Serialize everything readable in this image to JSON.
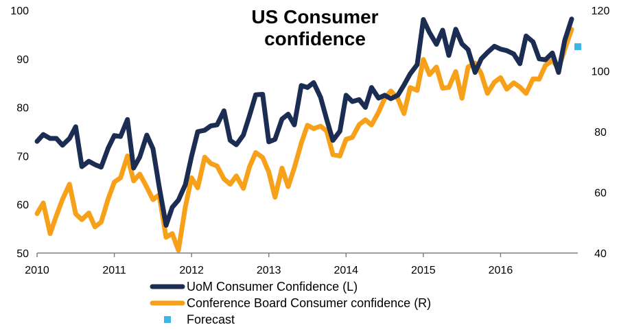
{
  "chart_data": {
    "type": "line",
    "title_lines": [
      "US Consumer",
      "confidence"
    ],
    "x_tick_labels": [
      "2010",
      "2011",
      "2012",
      "2013",
      "2014",
      "2015",
      "2016"
    ],
    "xlim": [
      2010,
      2017
    ],
    "y_left": {
      "ylim": [
        50,
        100
      ],
      "ticks": [
        50,
        60,
        70,
        80,
        90,
        100
      ]
    },
    "y_right": {
      "ylim": [
        40,
        120
      ],
      "ticks": [
        40,
        60,
        80,
        100,
        120
      ]
    },
    "grid": false,
    "legend_position": "bottom",
    "series": [
      {
        "name": "UoM Consumer Confidence (L)",
        "axis": "left",
        "color": "#1b2d52",
        "points": [
          [
            2010.0,
            73.0
          ],
          [
            2010.08,
            74.4
          ],
          [
            2010.17,
            73.6
          ],
          [
            2010.25,
            73.6
          ],
          [
            2010.33,
            72.2
          ],
          [
            2010.42,
            73.6
          ],
          [
            2010.5,
            76.0
          ],
          [
            2010.58,
            67.8
          ],
          [
            2010.67,
            68.9
          ],
          [
            2010.75,
            68.2
          ],
          [
            2010.83,
            67.7
          ],
          [
            2010.92,
            71.6
          ],
          [
            2011.0,
            74.2
          ],
          [
            2011.08,
            74.0
          ],
          [
            2011.17,
            77.5
          ],
          [
            2011.25,
            67.5
          ],
          [
            2011.33,
            69.8
          ],
          [
            2011.42,
            74.3
          ],
          [
            2011.5,
            71.5
          ],
          [
            2011.58,
            63.7
          ],
          [
            2011.67,
            55.7
          ],
          [
            2011.75,
            59.4
          ],
          [
            2011.83,
            60.9
          ],
          [
            2011.92,
            64.1
          ],
          [
            2012.0,
            69.9
          ],
          [
            2012.08,
            75.0
          ],
          [
            2012.17,
            75.3
          ],
          [
            2012.25,
            76.2
          ],
          [
            2012.33,
            76.4
          ],
          [
            2012.42,
            79.3
          ],
          [
            2012.5,
            73.2
          ],
          [
            2012.58,
            72.3
          ],
          [
            2012.67,
            74.3
          ],
          [
            2012.75,
            78.3
          ],
          [
            2012.83,
            82.6
          ],
          [
            2012.92,
            82.7
          ],
          [
            2013.0,
            72.9
          ],
          [
            2013.08,
            73.4
          ],
          [
            2013.17,
            77.6
          ],
          [
            2013.25,
            78.6
          ],
          [
            2013.33,
            76.4
          ],
          [
            2013.42,
            84.5
          ],
          [
            2013.5,
            84.1
          ],
          [
            2013.58,
            85.1
          ],
          [
            2013.67,
            82.1
          ],
          [
            2013.75,
            77.5
          ],
          [
            2013.83,
            73.2
          ],
          [
            2013.92,
            75.1
          ],
          [
            2014.0,
            82.5
          ],
          [
            2014.08,
            81.2
          ],
          [
            2014.17,
            81.6
          ],
          [
            2014.25,
            80.0
          ],
          [
            2014.33,
            84.1
          ],
          [
            2014.42,
            81.9
          ],
          [
            2014.5,
            82.5
          ],
          [
            2014.58,
            81.8
          ],
          [
            2014.67,
            82.5
          ],
          [
            2014.75,
            84.6
          ],
          [
            2014.83,
            86.9
          ],
          [
            2014.92,
            88.8
          ],
          [
            2015.0,
            98.1
          ],
          [
            2015.08,
            95.4
          ],
          [
            2015.17,
            93.0
          ],
          [
            2015.25,
            95.9
          ],
          [
            2015.33,
            90.7
          ],
          [
            2015.42,
            96.1
          ],
          [
            2015.5,
            93.1
          ],
          [
            2015.58,
            91.9
          ],
          [
            2015.67,
            87.2
          ],
          [
            2015.75,
            90.0
          ],
          [
            2015.83,
            91.3
          ],
          [
            2015.92,
            92.6
          ],
          [
            2016.0,
            92.0
          ],
          [
            2016.08,
            91.7
          ],
          [
            2016.17,
            91.0
          ],
          [
            2016.25,
            89.0
          ],
          [
            2016.33,
            94.7
          ],
          [
            2016.42,
            93.5
          ],
          [
            2016.5,
            90.0
          ],
          [
            2016.58,
            89.8
          ],
          [
            2016.67,
            91.2
          ],
          [
            2016.75,
            87.2
          ],
          [
            2016.83,
            93.8
          ],
          [
            2016.92,
            98.2
          ]
        ]
      },
      {
        "name": "Conference Board Consumer confidence (R)",
        "axis": "right",
        "color": "#f7a11a",
        "points": [
          [
            2010.0,
            53.0
          ],
          [
            2010.08,
            56.5
          ],
          [
            2010.17,
            46.4
          ],
          [
            2010.25,
            52.3
          ],
          [
            2010.33,
            57.7
          ],
          [
            2010.42,
            62.7
          ],
          [
            2010.5,
            52.9
          ],
          [
            2010.58,
            51.0
          ],
          [
            2010.67,
            53.2
          ],
          [
            2010.75,
            48.6
          ],
          [
            2010.83,
            50.2
          ],
          [
            2010.92,
            57.8
          ],
          [
            2011.0,
            63.4
          ],
          [
            2011.08,
            64.8
          ],
          [
            2011.17,
            72.0
          ],
          [
            2011.25,
            63.8
          ],
          [
            2011.33,
            66.0
          ],
          [
            2011.42,
            61.7
          ],
          [
            2011.5,
            57.6
          ],
          [
            2011.58,
            59.2
          ],
          [
            2011.67,
            45.2
          ],
          [
            2011.75,
            46.4
          ],
          [
            2011.83,
            40.9
          ],
          [
            2011.92,
            55.2
          ],
          [
            2012.0,
            64.8
          ],
          [
            2012.08,
            61.5
          ],
          [
            2012.17,
            71.6
          ],
          [
            2012.25,
            69.5
          ],
          [
            2012.33,
            68.7
          ],
          [
            2012.42,
            64.4
          ],
          [
            2012.5,
            62.7
          ],
          [
            2012.58,
            65.4
          ],
          [
            2012.67,
            61.3
          ],
          [
            2012.75,
            68.4
          ],
          [
            2012.83,
            73.1
          ],
          [
            2012.92,
            71.5
          ],
          [
            2013.0,
            66.7
          ],
          [
            2013.08,
            58.4
          ],
          [
            2013.17,
            68.0
          ],
          [
            2013.25,
            61.9
          ],
          [
            2013.33,
            68.1
          ],
          [
            2013.42,
            76.2
          ],
          [
            2013.5,
            82.1
          ],
          [
            2013.58,
            81.0
          ],
          [
            2013.67,
            81.8
          ],
          [
            2013.75,
            80.2
          ],
          [
            2013.83,
            72.4
          ],
          [
            2013.92,
            72.0
          ],
          [
            2014.0,
            77.5
          ],
          [
            2014.08,
            78.1
          ],
          [
            2014.17,
            82.3
          ],
          [
            2014.25,
            83.9
          ],
          [
            2014.33,
            82.2
          ],
          [
            2014.42,
            86.4
          ],
          [
            2014.5,
            91.0
          ],
          [
            2014.58,
            93.4
          ],
          [
            2014.67,
            90.9
          ],
          [
            2014.75,
            86.0
          ],
          [
            2014.83,
            94.5
          ],
          [
            2014.92,
            93.6
          ],
          [
            2015.0,
            103.8
          ],
          [
            2015.08,
            98.8
          ],
          [
            2015.17,
            101.3
          ],
          [
            2015.25,
            94.3
          ],
          [
            2015.33,
            94.6
          ],
          [
            2015.42,
            99.8
          ],
          [
            2015.5,
            91.0
          ],
          [
            2015.58,
            101.3
          ],
          [
            2015.67,
            102.6
          ],
          [
            2015.75,
            99.1
          ],
          [
            2015.83,
            92.6
          ],
          [
            2015.92,
            96.3
          ],
          [
            2016.0,
            97.8
          ],
          [
            2016.08,
            94.0
          ],
          [
            2016.17,
            96.1
          ],
          [
            2016.25,
            94.7
          ],
          [
            2016.33,
            92.6
          ],
          [
            2016.42,
            97.4
          ],
          [
            2016.5,
            97.3
          ],
          [
            2016.58,
            101.8
          ],
          [
            2016.67,
            103.5
          ],
          [
            2016.75,
            100.8
          ],
          [
            2016.83,
            107.1
          ],
          [
            2016.92,
            113.7
          ]
        ]
      },
      {
        "name": "Forecast",
        "axis": "right",
        "color": "#3db5e6",
        "marker": "square",
        "points": [
          [
            2017.0,
            108.0
          ]
        ]
      }
    ]
  }
}
